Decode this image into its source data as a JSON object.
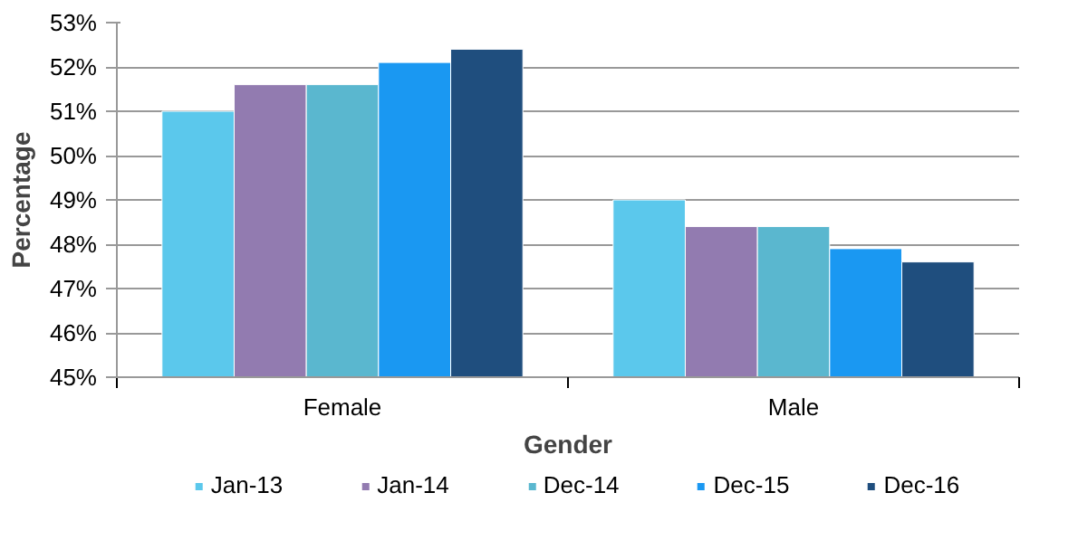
{
  "chart_data": {
    "type": "bar",
    "xlabel": "Gender",
    "ylabel": "Percentage",
    "categories": [
      "Female",
      "Male"
    ],
    "series": [
      {
        "name": "Jan-13",
        "color": "#5bc8ec",
        "values": [
          51.0,
          49.0
        ]
      },
      {
        "name": "Jan-14",
        "color": "#927bb0",
        "values": [
          51.6,
          48.4
        ]
      },
      {
        "name": "Dec-14",
        "color": "#5ab7cf",
        "values": [
          51.6,
          48.4
        ]
      },
      {
        "name": "Dec-15",
        "color": "#1a98f2",
        "values": [
          52.1,
          47.9
        ]
      },
      {
        "name": "Dec-16",
        "color": "#1f4e7e",
        "values": [
          52.4,
          47.6
        ]
      }
    ],
    "ylim": [
      45,
      53
    ],
    "yticks": [
      {
        "value": 45,
        "label": "45%"
      },
      {
        "value": 46,
        "label": "46%"
      },
      {
        "value": 47,
        "label": "47%"
      },
      {
        "value": 48,
        "label": "48%"
      },
      {
        "value": 49,
        "label": "49%"
      },
      {
        "value": 50,
        "label": "50%"
      },
      {
        "value": 51,
        "label": "51%"
      },
      {
        "value": 52,
        "label": "52%"
      },
      {
        "value": 53,
        "label": "53%"
      }
    ],
    "grid": "y",
    "legend": "bottom"
  }
}
